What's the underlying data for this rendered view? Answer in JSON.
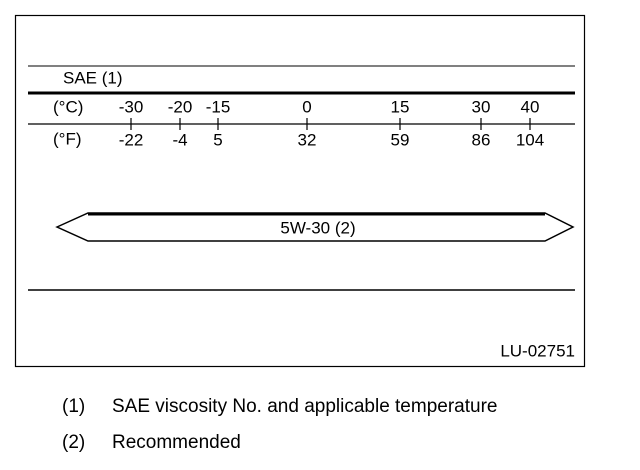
{
  "diagram": {
    "scale_title": "SAE (1)",
    "celsius_label": "(°C)",
    "fahrenheit_label": "(°F)",
    "ticks": [
      {
        "c": -30,
        "f": -22
      },
      {
        "c": -20,
        "f": -4
      },
      {
        "c": -15,
        "f": 5
      },
      {
        "c": 0,
        "f": 32
      },
      {
        "c": 15,
        "f": 59
      },
      {
        "c": 30,
        "f": 86
      },
      {
        "c": 40,
        "f": 104
      }
    ],
    "band_label": "5W-30 (2)",
    "figure_id": "LU-02751"
  },
  "notes": [
    {
      "marker": "(1)",
      "text": "SAE viscosity No. and applicable temperature"
    },
    {
      "marker": "(2)",
      "text": "Recommended"
    }
  ]
}
